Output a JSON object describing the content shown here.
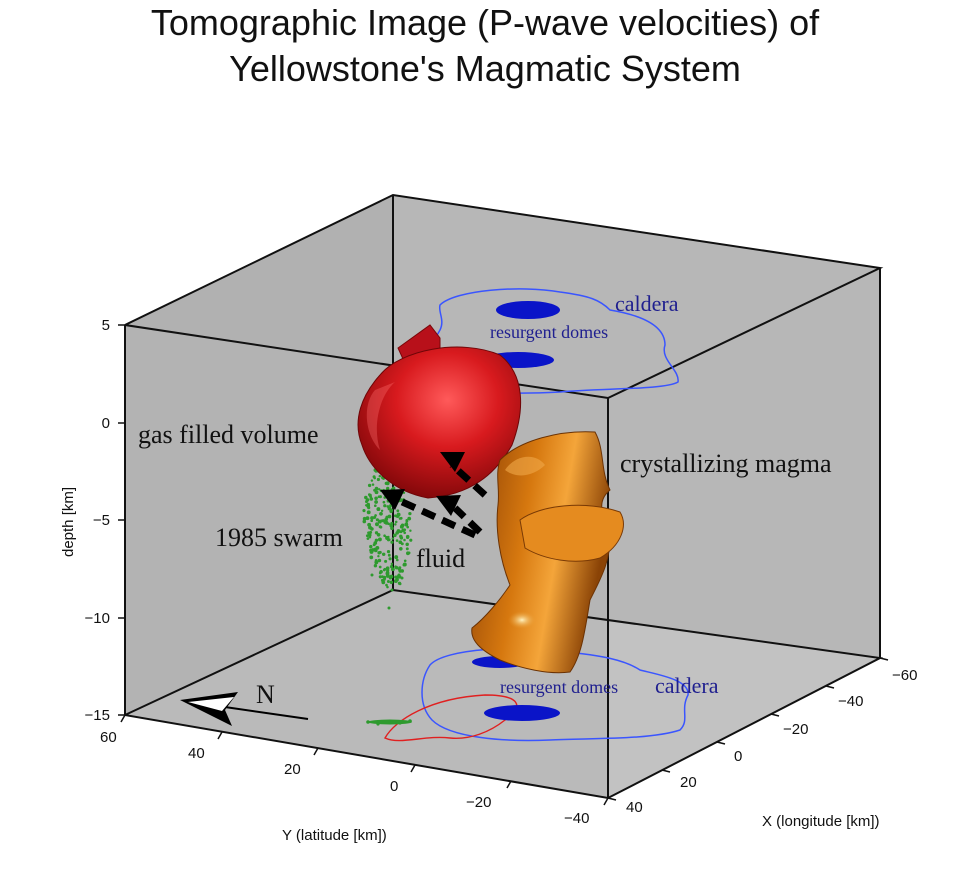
{
  "title": {
    "line1": "Tomographic Image (P-wave velocities) of",
    "line2": "Yellowstone's Magmatic System"
  },
  "axes": {
    "depth": {
      "label": "depth [km]",
      "ticks": [
        "5",
        "0",
        "−5",
        "−10",
        "−15"
      ]
    },
    "y": {
      "label": "Y (latitude [km])",
      "ticks": [
        "60",
        "40",
        "20",
        "0",
        "−20",
        "−40"
      ]
    },
    "x": {
      "label": "X (longitude [km])",
      "ticks": [
        "−60",
        "−40",
        "−20",
        "0",
        "20",
        "40"
      ]
    }
  },
  "annotations": {
    "gas_filled_volume": "gas filled volume",
    "crystallizing_magma": "crystallizing magma",
    "swarm_1985": "1985 swarm",
    "fluid": "fluid",
    "north": "N",
    "caldera_top": "caldera",
    "resurgent_domes_top": "resurgent domes",
    "caldera_bottom": "caldera",
    "resurgent_domes_bottom": "resurgent domes"
  },
  "colors": {
    "box_face": "#b3b3b3",
    "gas_volume": "#cc0f14",
    "magma": "#c7670f",
    "swarm": "#2e9a2e",
    "domes": "#0a14c8",
    "caldera_outline": "#3a55ff",
    "red_outline": "#e02020"
  }
}
